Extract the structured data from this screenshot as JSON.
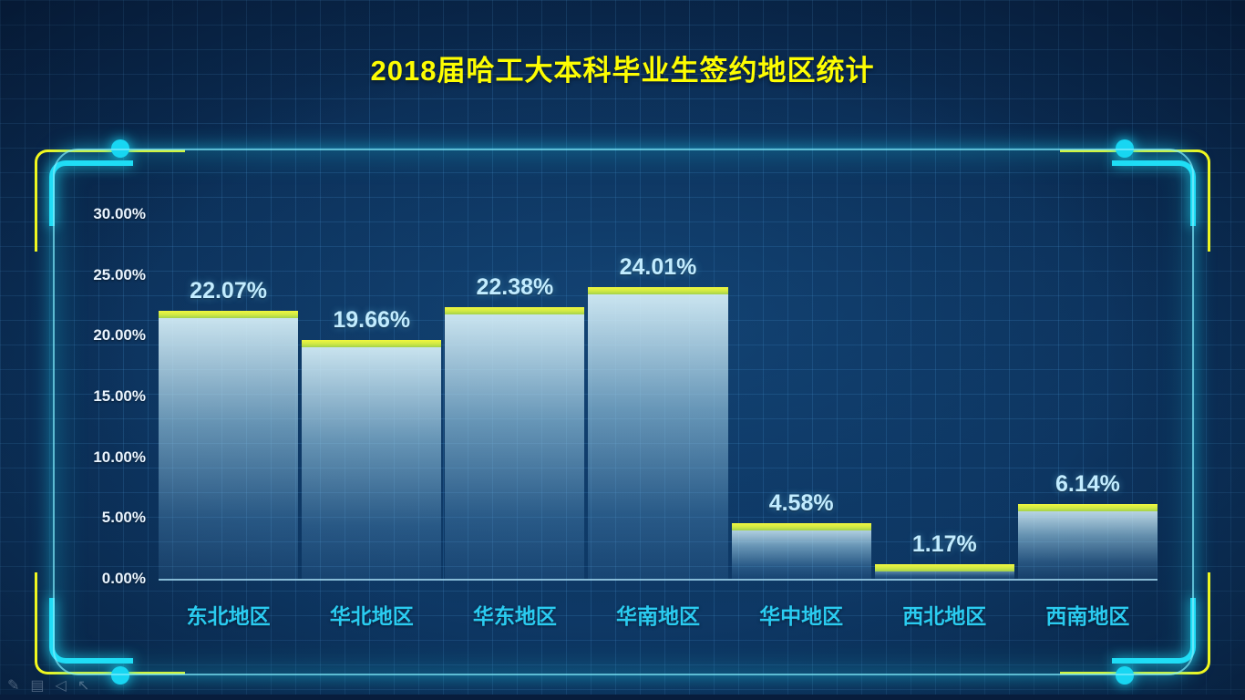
{
  "title": "2018届哈工大本科毕业生签约地区统计",
  "chart_data": {
    "type": "bar",
    "title": "2018届哈工大本科毕业生签约地区统计",
    "categories": [
      "东北地区",
      "华北地区",
      "华东地区",
      "华南地区",
      "华中地区",
      "西北地区",
      "西南地区"
    ],
    "values": [
      22.07,
      19.66,
      22.38,
      24.01,
      4.58,
      1.17,
      6.14
    ],
    "value_labels": [
      "22.07%",
      "19.66%",
      "22.38%",
      "24.01%",
      "4.58%",
      "1.17%",
      "6.14%"
    ],
    "xlabel": "",
    "ylabel": "",
    "ylim": [
      0,
      30
    ],
    "yticks": [
      "30.00%",
      "25.00%",
      "20.00%",
      "15.00%",
      "10.00%",
      "5.00%",
      "0.00%"
    ],
    "grid": true,
    "legend": "none"
  },
  "colors": {
    "background": "#0c3058",
    "title_text": "#fdfd02",
    "bar_cap_top": "#f2f83e",
    "bar_cap_bottom": "#a3d24a",
    "bar_body": "#daf2fa",
    "value_label": "#c2ecff",
    "category_label": "#2acbf0",
    "axis_label": "#eaf5ff",
    "frame_glow": "#1ed7f5",
    "bracket_yellow": "#f4f81c"
  },
  "footer_toolbar": {
    "icons": [
      {
        "name": "pen-icon",
        "glyph": "✎"
      },
      {
        "name": "notes-icon",
        "glyph": "▤"
      },
      {
        "name": "back-icon",
        "glyph": "◁"
      },
      {
        "name": "cursor-icon",
        "glyph": "↖"
      }
    ]
  }
}
